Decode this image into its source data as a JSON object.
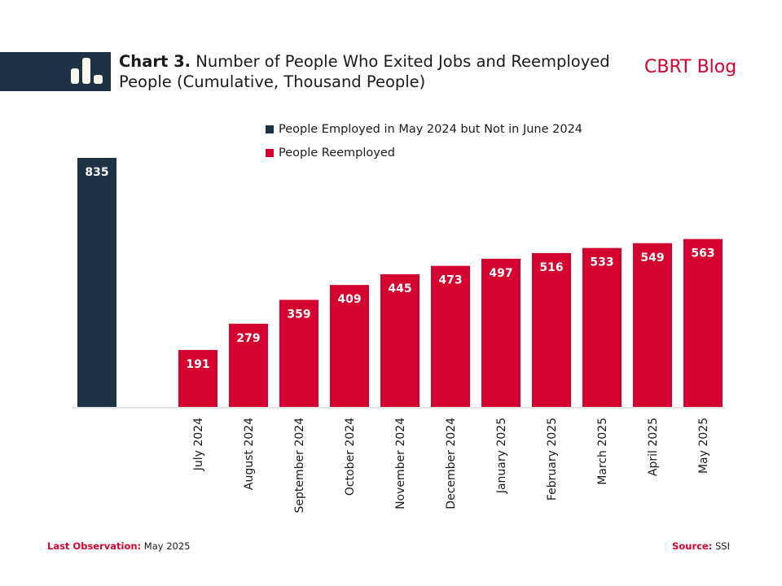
{
  "header": {
    "chart_number": "Chart 3.",
    "title_text": "Number of People Who Exited Jobs and Reemployed People (Cumulative, Thousand People)",
    "blog_label": "CBRT Blog",
    "icon": "bar-chart-icon"
  },
  "footer": {
    "last_obs_key": "Last Observation:",
    "last_obs_value": "May 2025",
    "source_key": "Source:",
    "source_value": "SSI"
  },
  "colors": {
    "navy": "#1e3246",
    "red": "#d4022f",
    "axis": "#d9d9d9"
  },
  "chart_data": {
    "type": "bar",
    "title": "Chart 3. Number of People Who Exited Jobs and Reemployed People (Cumulative, Thousand People)",
    "xlabel": "",
    "ylabel": "",
    "ylim": [
      0,
      835
    ],
    "grid": false,
    "legend_position": "top-center",
    "legend": [
      {
        "name": "People Employed in May 2024 but Not in June 2024",
        "color": "#1e3246"
      },
      {
        "name": "People Reemployed",
        "color": "#d4022f"
      }
    ],
    "categories": [
      "",
      "",
      "July 2024",
      "August 2024",
      "September 2024",
      "October 2024",
      "November 2024",
      "December 2024",
      "January 2025",
      "February 2025",
      "March 2025",
      "April 2025",
      "May 2025"
    ],
    "series": [
      {
        "name": "People Employed in May 2024 but Not in June 2024",
        "color": "#1e3246",
        "values": [
          835,
          null,
          null,
          null,
          null,
          null,
          null,
          null,
          null,
          null,
          null,
          null,
          null
        ]
      },
      {
        "name": "People Reemployed",
        "color": "#d4022f",
        "values": [
          null,
          null,
          191,
          279,
          359,
          409,
          445,
          473,
          497,
          516,
          533,
          549,
          563
        ]
      }
    ]
  }
}
